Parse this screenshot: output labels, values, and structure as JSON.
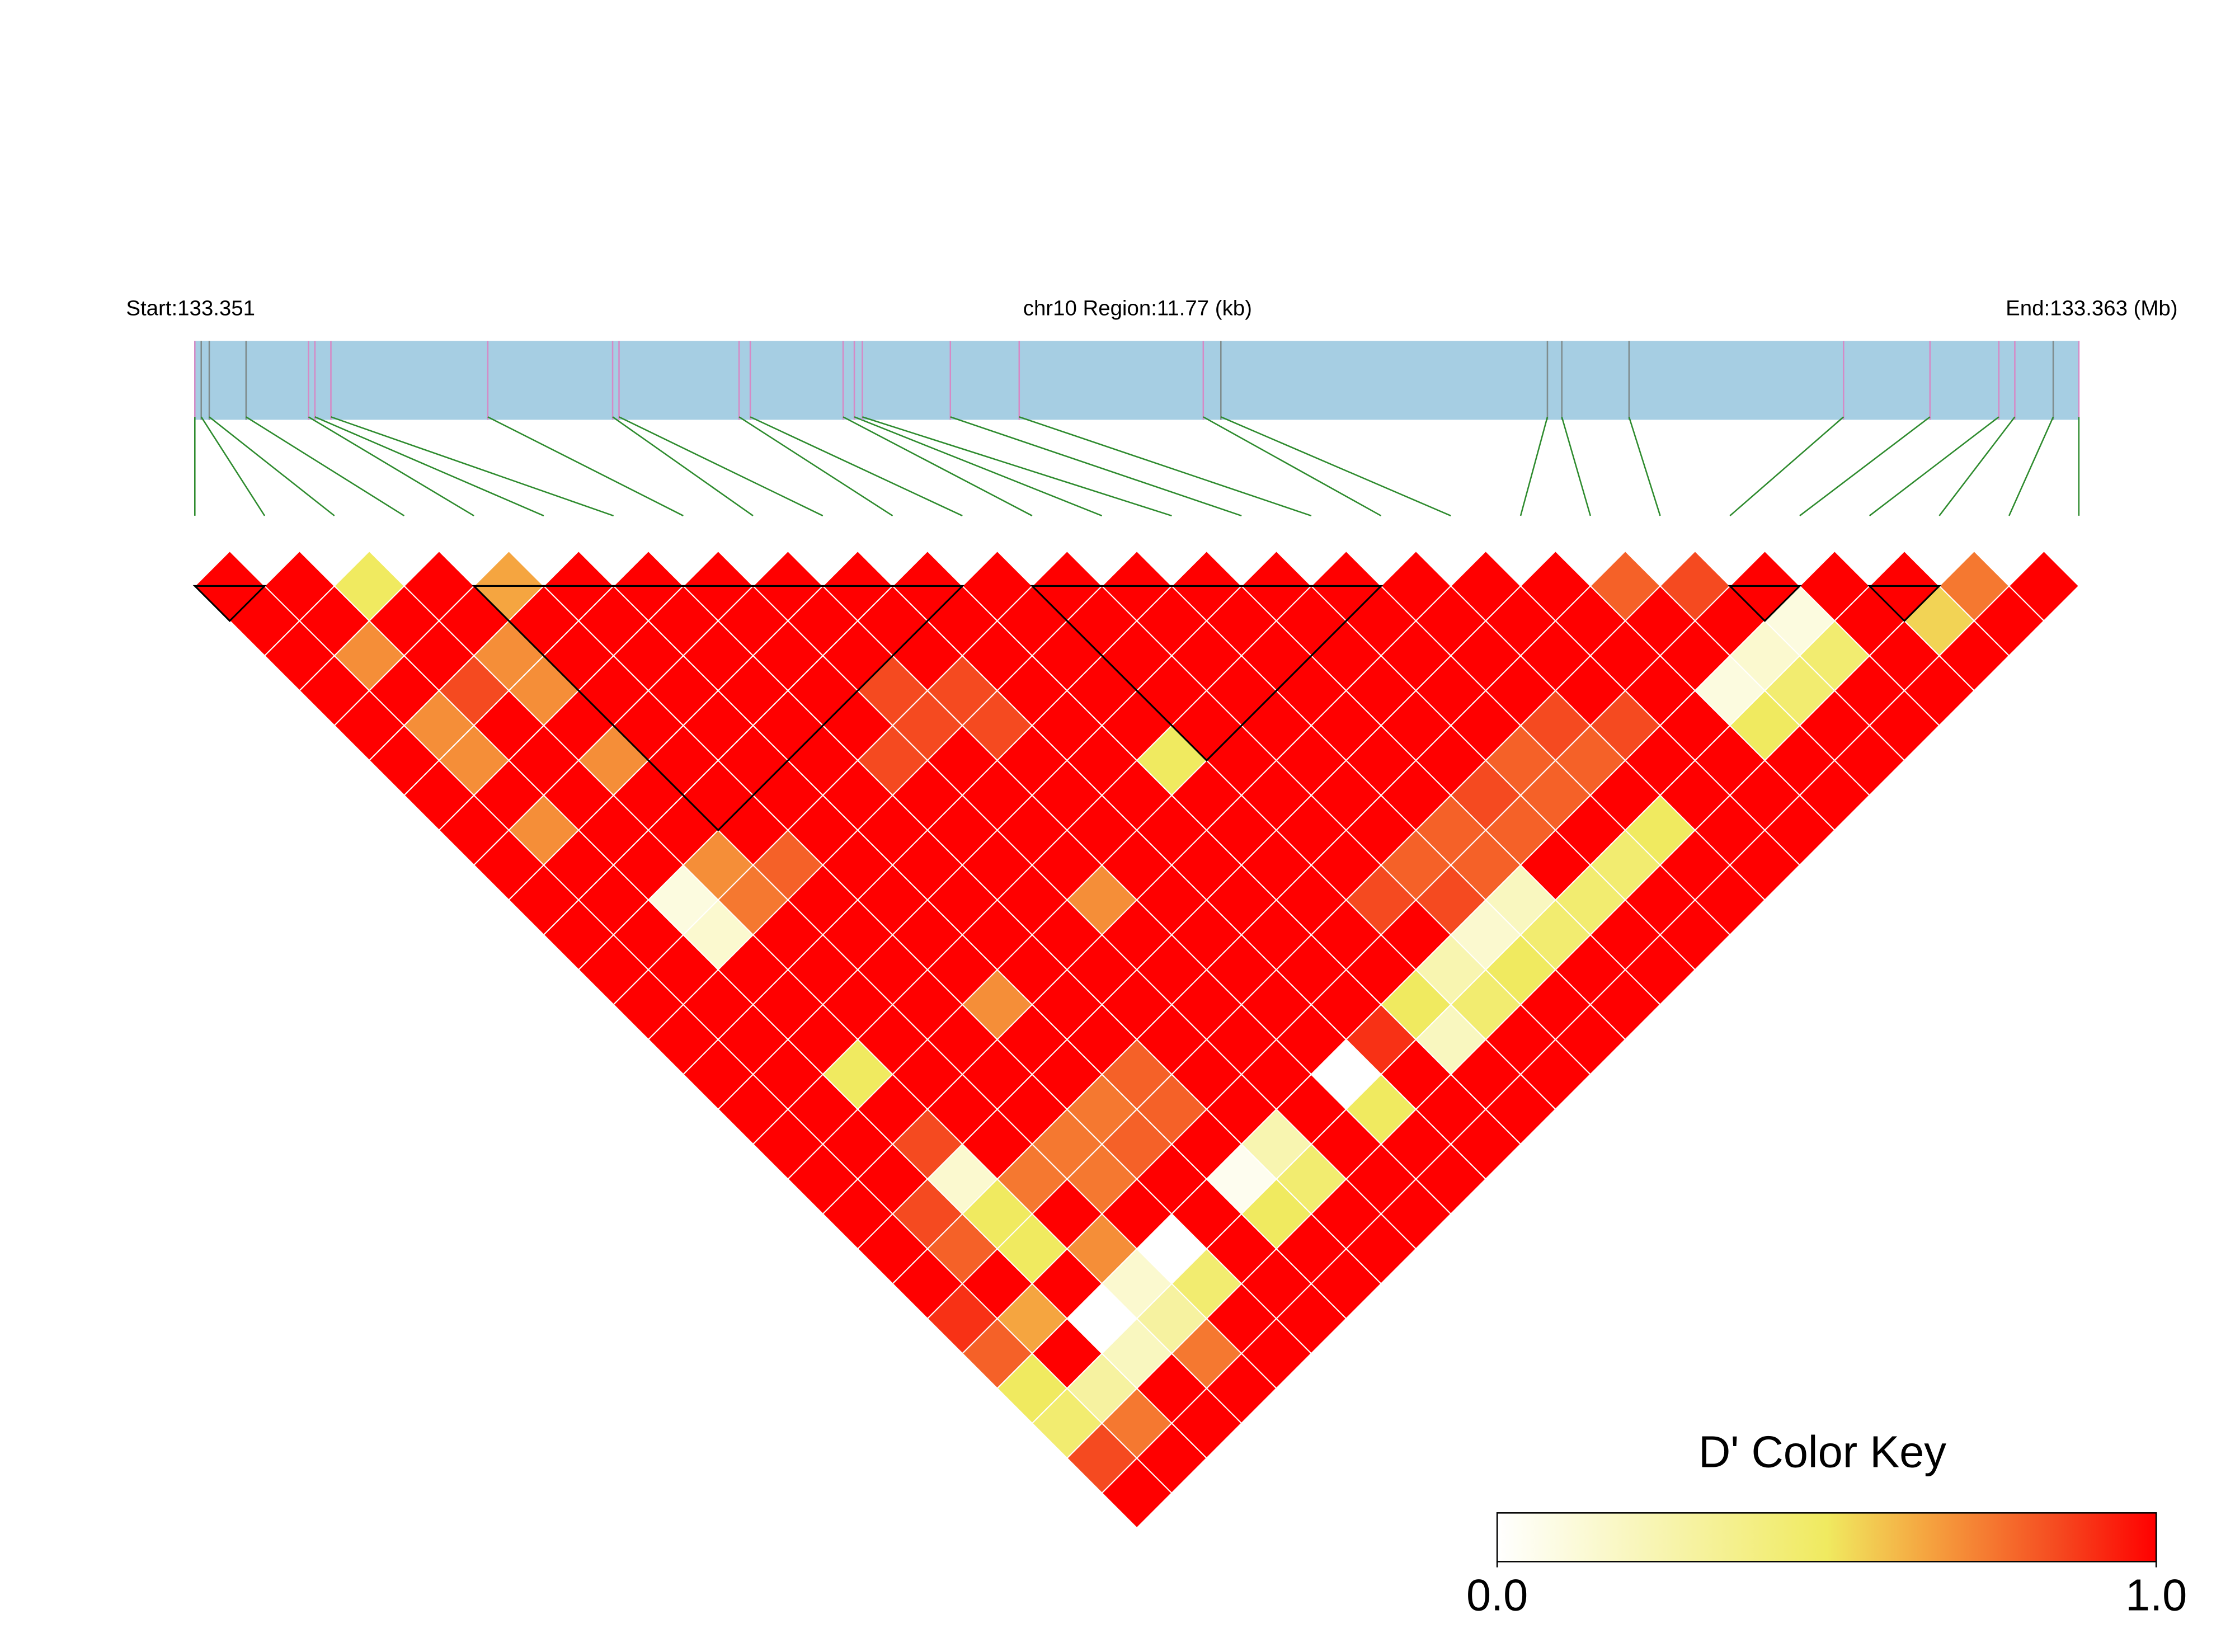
{
  "chart_data": {
    "type": "ld_heatmap",
    "start_label": "Start:133.351",
    "title": "chr10 Region:11.77 (kb)",
    "end_label": "End:133.363 (Mb)",
    "xlim": [
      0,
      11.77
    ],
    "positions": [
      0.0,
      0.04,
      0.09,
      0.32,
      0.71,
      0.75,
      0.85,
      1.83,
      2.61,
      2.65,
      3.4,
      3.47,
      4.05,
      4.12,
      4.17,
      4.72,
      5.15,
      6.3,
      6.41,
      8.45,
      8.54,
      8.96,
      10.3,
      10.84,
      11.27,
      11.37,
      11.61,
      11.77
    ],
    "marker_colors": [
      "#d58ac6",
      "#7f8c8d",
      "#7f8c8d",
      "#7f8c8d",
      "#d58ac6",
      "#d58ac6",
      "#d58ac6",
      "#d58ac6",
      "#d58ac6",
      "#d58ac6",
      "#d58ac6",
      "#d58ac6",
      "#d58ac6",
      "#d58ac6",
      "#d58ac6",
      "#d58ac6",
      "#d58ac6",
      "#d58ac6",
      "#7f8c8d",
      "#7f8c8d",
      "#7f8c8d",
      "#7f8c8d",
      "#d58ac6",
      "#d58ac6",
      "#d58ac6",
      "#d58ac6",
      "#7f8c8d",
      "#d58ac6"
    ],
    "bar_color": "#a6cee3",
    "connector_color": "#2e8b2e",
    "values": [
      [
        1,
        1,
        1,
        1,
        1,
        1,
        1,
        1,
        1,
        1,
        1,
        1,
        1,
        1,
        1,
        1,
        1,
        1,
        1,
        1,
        1,
        0.9,
        0.8,
        0.5,
        0.45,
        0.85,
        1
      ],
      [
        1,
        1,
        0.7,
        1,
        0.7,
        0.7,
        1,
        0.7,
        1,
        1,
        1,
        1,
        1,
        1,
        1,
        1,
        1,
        1,
        0.85,
        0.8,
        1,
        0.65,
        1,
        0.3,
        0.75,
        1
      ],
      [
        0.5,
        1,
        1,
        0.85,
        1,
        1,
        1,
        1,
        1,
        0.1,
        0.15,
        1,
        1,
        1,
        0.5,
        1,
        0.85,
        0.15,
        0.5,
        0.5,
        1,
        0,
        0.2,
        1,
        1
      ],
      [
        1,
        1,
        0.7,
        0.7,
        1,
        0.7,
        1,
        1,
        0.7,
        0.75,
        1,
        1,
        1,
        1,
        1,
        1,
        1,
        0.75,
        1,
        0.7,
        0.15,
        0.3,
        0.75,
        1
      ],
      [
        0.65,
        1,
        1,
        1,
        1,
        1,
        1,
        1,
        0.8,
        1,
        1,
        1,
        1,
        1,
        1,
        1,
        0.75,
        0.75,
        1,
        0,
        0.45,
        1,
        1
      ],
      [
        1,
        1,
        1,
        1,
        1,
        1,
        1,
        1,
        1,
        1,
        1,
        1,
        0.7,
        1,
        1,
        0.75,
        0.8,
        1,
        1,
        1,
        1,
        1
      ],
      [
        1,
        1,
        1,
        1,
        1,
        1,
        1,
        1,
        1,
        1,
        1,
        1,
        1,
        1,
        0.8,
        0.8,
        1,
        0.05,
        0.5,
        1,
        1
      ],
      [
        1,
        1,
        1,
        1,
        1,
        0.85,
        1,
        1,
        1,
        1,
        1,
        1,
        1,
        1,
        1,
        1,
        0.25,
        0.45,
        1,
        1
      ],
      [
        1,
        1,
        1,
        0.85,
        0.85,
        1,
        1,
        1,
        1,
        0.7,
        1,
        1,
        1,
        1,
        1,
        1,
        1,
        1,
        1
      ],
      [
        1,
        1,
        1,
        0.85,
        0.85,
        1,
        1,
        1,
        1,
        1,
        1,
        1,
        1,
        1,
        0,
        0.5,
        1,
        1
      ],
      [
        1,
        1,
        1,
        1,
        1,
        1,
        1,
        1,
        1,
        1,
        1,
        1,
        1,
        0.9,
        1,
        1,
        1
      ],
      [
        1,
        1,
        1,
        1,
        1,
        0.5,
        1,
        1,
        1,
        1,
        1,
        1,
        0.5,
        0.2,
        1,
        1
      ],
      [
        1,
        1,
        1,
        1,
        1,
        1,
        1,
        1,
        1,
        0.85,
        1,
        0.25,
        0.45,
        1,
        1
      ],
      [
        1,
        1,
        1,
        1,
        1,
        1,
        1,
        1,
        0.8,
        0.85,
        0.15,
        0.5,
        1,
        1
      ],
      [
        1,
        1,
        1,
        1,
        1,
        1,
        1,
        0.8,
        0.8,
        0.2,
        0.45,
        1,
        1
      ],
      [
        1,
        1,
        1,
        1,
        1,
        1,
        0.85,
        0.8,
        1,
        0.45,
        1,
        1
      ],
      [
        1,
        1,
        1,
        1,
        1,
        0.8,
        0.8,
        1,
        0.45,
        1,
        1
      ],
      [
        1,
        1,
        1,
        1,
        0.85,
        0.8,
        1,
        0.5,
        1,
        1
      ],
      [
        1,
        1,
        1,
        1,
        0.85,
        1,
        1,
        1,
        1
      ],
      [
        1,
        1,
        1,
        1,
        1,
        1,
        1,
        1
      ],
      [
        0.8,
        1,
        1,
        0.1,
        0.5,
        1,
        1
      ],
      [
        0.85,
        1,
        0.15,
        0.45,
        1,
        1
      ],
      [
        1,
        0.1,
        0.45,
        1,
        1
      ],
      [
        1,
        1,
        1,
        1
      ],
      [
        1,
        0.55,
        1
      ],
      [
        0.75,
        1
      ],
      [
        1
      ]
    ],
    "blocks": [
      [
        0,
        1
      ],
      [
        4,
        11
      ],
      [
        12,
        17
      ],
      [
        22,
        23
      ],
      [
        24,
        25
      ]
    ],
    "colorscale": [
      [
        0,
        "#ffffff"
      ],
      [
        0.5,
        "#f0ea60"
      ],
      [
        0.65,
        "#f5a540"
      ],
      [
        0.85,
        "#f54a20"
      ],
      [
        1,
        "#ff0000"
      ]
    ],
    "key_title": "D' Color Key",
    "key_ticks": [
      {
        "value": 0,
        "label": "0.0"
      },
      {
        "value": 1,
        "label": "1.0"
      }
    ]
  }
}
